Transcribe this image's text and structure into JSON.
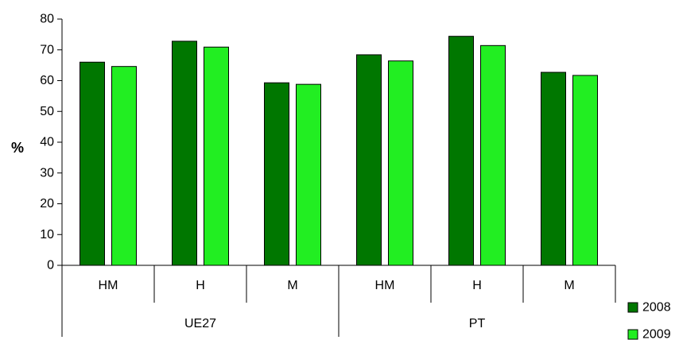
{
  "chart_data": {
    "type": "bar",
    "title": "",
    "xlabel": "",
    "ylabel": "%",
    "ylim": [
      0,
      80
    ],
    "yticks": [
      0,
      10,
      20,
      30,
      40,
      50,
      60,
      70,
      80
    ],
    "categories": [
      "HM",
      "H",
      "M",
      "HM",
      "H",
      "M"
    ],
    "groups": [
      {
        "label": "UE27",
        "categories": [
          "HM",
          "H",
          "M"
        ]
      },
      {
        "label": "PT",
        "categories": [
          "HM",
          "H",
          "M"
        ]
      }
    ],
    "series": [
      {
        "name": "2008",
        "color": "#007700",
        "values": [
          66,
          72.8,
          59.3,
          68.4,
          74.4,
          62.7
        ]
      },
      {
        "name": "2009",
        "color": "#22EE22",
        "values": [
          64.6,
          70.9,
          58.8,
          66.4,
          71.4,
          61.7
        ]
      }
    ],
    "grid": false,
    "legend_position": "bottom-right"
  }
}
